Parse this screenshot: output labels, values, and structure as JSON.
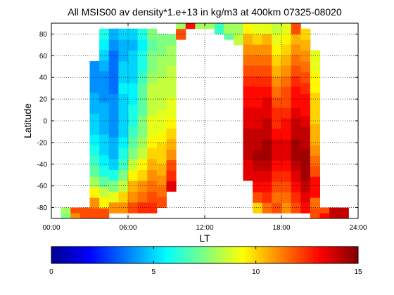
{
  "chart_data": {
    "type": "heatmap",
    "title": "All MSIS00 av density*1.e+13 in kg/m3 at 400km 07325-08020",
    "xlabel": "LT",
    "ylabel": "Latitude",
    "xlim": [
      0,
      24
    ],
    "ylim": [
      -90,
      90
    ],
    "xtick_labels": [
      "00:00",
      "06:00",
      "12:00",
      "18:00",
      "24:00"
    ],
    "ytick_labels": [
      "-80",
      "-60",
      "-40",
      "-20",
      "0",
      "20",
      "40",
      "60",
      "80"
    ],
    "grid": true,
    "colorscale": "jet",
    "colorbar": {
      "range": [
        0,
        15
      ],
      "tick_labels": [
        "0",
        "5",
        "10",
        "15"
      ]
    },
    "columns": [
      {
        "lt_start": 0.75,
        "lt_end": 1.5,
        "lat_start": -90,
        "lat_end": -80,
        "values": [
          7.5,
          8
        ]
      },
      {
        "lt_start": 1.5,
        "lt_end": 2.25,
        "lat_start": -90,
        "lat_end": -80,
        "values": [
          11,
          12
        ]
      },
      {
        "lt_start": 2.25,
        "lt_end": 3.0,
        "lat_start": -90,
        "lat_end": -80,
        "values": [
          12,
          12
        ]
      },
      {
        "lt_start": 3.0,
        "lt_end": 3.75,
        "lat_start": -90,
        "lat_end": 55,
        "values": [
          12,
          11,
          9.5,
          8,
          7,
          6.5,
          6,
          5.5,
          5,
          5,
          4.5,
          4.5,
          4,
          4,
          4
        ]
      },
      {
        "lt_start": 3.75,
        "lt_end": 4.5,
        "lat_start": -90,
        "lat_end": 85,
        "values": [
          12,
          9.5,
          8.5,
          7,
          6,
          5.5,
          5,
          5,
          4.5,
          4.5,
          4.5,
          4,
          4,
          4,
          4.5,
          5,
          5.5,
          6
        ]
      },
      {
        "lt_start": 4.5,
        "lt_end": 5.25,
        "lat_start": -85,
        "lat_end": 85,
        "values": [
          11,
          9,
          7.5,
          6,
          5,
          4.5,
          4.5,
          4,
          4,
          4,
          4,
          3.5,
          3.5,
          3.5,
          3.5,
          4,
          4.5
        ]
      },
      {
        "lt_start": 5.25,
        "lt_end": 6.0,
        "lat_start": -85,
        "lat_end": 85,
        "values": [
          11,
          10,
          8.5,
          7.5,
          6.5,
          6,
          5.5,
          5,
          5,
          5,
          5,
          5.5,
          5,
          5,
          4.5,
          4.5,
          5
        ]
      },
      {
        "lt_start": 6.0,
        "lt_end": 6.75,
        "lat_start": -85,
        "lat_end": 85,
        "values": [
          12,
          11,
          10.5,
          9.5,
          8.5,
          7.5,
          7,
          6.5,
          6,
          6,
          5.5,
          5.5,
          5,
          5,
          5,
          4.5,
          5
        ]
      },
      {
        "lt_start": 6.75,
        "lt_end": 7.5,
        "lat_start": -85,
        "lat_end": 85,
        "values": [
          12.5,
          11.5,
          11,
          10,
          9.5,
          8.5,
          8,
          7.5,
          7.5,
          7,
          7,
          7,
          6.5,
          6,
          6,
          5.5,
          6
        ]
      },
      {
        "lt_start": 7.5,
        "lt_end": 8.25,
        "lat_start": -85,
        "lat_end": 85,
        "values": [
          12.5,
          12,
          11.5,
          11,
          10.5,
          10,
          9.5,
          9,
          9,
          8.5,
          8.5,
          8.5,
          8,
          7.5,
          7.5,
          7,
          7.5
        ]
      },
      {
        "lt_start": 8.25,
        "lt_end": 9.0,
        "lat_start": -80,
        "lat_end": 80,
        "values": [
          12,
          11.5,
          11,
          10.5,
          10,
          10,
          9.5,
          9,
          9,
          8.5,
          8.5,
          8.5,
          8,
          8,
          7.5,
          7.5
        ]
      },
      {
        "lt_start": 9.0,
        "lt_end": 9.75,
        "lat_start": -65,
        "lat_end": 80,
        "values": [
          13.5,
          12.5,
          12,
          11,
          10.5,
          10,
          9.5,
          9,
          9,
          8.5,
          8.5,
          8.5,
          8,
          8,
          7.5
        ]
      },
      {
        "lt_start": 9.75,
        "lt_end": 10.5,
        "lat_start": 75,
        "lat_end": 85,
        "values": [
          12
        ]
      },
      {
        "lt_start": 9.75,
        "lt_end": 10.5,
        "lat_start": 85,
        "lat_end": 90,
        "values": [
          8
        ]
      },
      {
        "lt_start": 10.5,
        "lt_end": 11.25,
        "lat_start": 85,
        "lat_end": 90,
        "values": [
          13
        ]
      },
      {
        "lt_start": 11.25,
        "lt_end": 12.0,
        "lat_start": 85,
        "lat_end": 90,
        "values": [
          8
        ]
      },
      {
        "lt_start": 12.0,
        "lt_end": 12.75,
        "lat_start": 85,
        "lat_end": 90,
        "values": [
          8
        ]
      },
      {
        "lt_start": 12.75,
        "lt_end": 13.5,
        "lat_start": 80,
        "lat_end": 90,
        "values": [
          6.5
        ]
      },
      {
        "lt_start": 13.5,
        "lt_end": 14.25,
        "lat_start": 80,
        "lat_end": 90,
        "values": [
          8
        ]
      },
      {
        "lt_start": 13.5,
        "lt_end": 14.25,
        "lat_start": 75,
        "lat_end": 80,
        "values": [
          7
        ]
      },
      {
        "lt_start": 14.25,
        "lt_end": 15.0,
        "lat_start": 70,
        "lat_end": 90,
        "values": [
          8.5,
          8
        ]
      },
      {
        "lt_start": 15.0,
        "lt_end": 15.75,
        "lat_start": -55,
        "lat_end": 90,
        "values": [
          13.5,
          13.5,
          14,
          14,
          14,
          13.5,
          13.5,
          13,
          13,
          12.5,
          12,
          11.5,
          11,
          10.5,
          9.5
        ]
      },
      {
        "lt_start": 15.75,
        "lt_end": 16.5,
        "lat_start": -85,
        "lat_end": 90,
        "values": [
          10,
          12,
          13,
          13.5,
          14,
          14.5,
          14,
          14,
          13.5,
          13.5,
          13,
          13,
          12.5,
          12,
          11.5,
          11,
          10,
          9
        ]
      },
      {
        "lt_start": 16.5,
        "lt_end": 17.25,
        "lat_start": -85,
        "lat_end": 90,
        "values": [
          11.5,
          12.5,
          13,
          13.5,
          14,
          14.5,
          14.5,
          14,
          14,
          13.5,
          13.5,
          13,
          12.5,
          12,
          11.5,
          11,
          10.5,
          9
        ]
      },
      {
        "lt_start": 17.25,
        "lt_end": 18.0,
        "lat_start": -85,
        "lat_end": 90,
        "values": [
          12,
          11.5,
          12,
          12.5,
          13,
          13.5,
          13.5,
          13,
          12.5,
          12.5,
          12,
          11.5,
          11,
          10.5,
          10,
          9.5,
          9,
          8.5
        ]
      },
      {
        "lt_start": 18.0,
        "lt_end": 18.75,
        "lat_start": -85,
        "lat_end": 90,
        "values": [
          11,
          11.5,
          12,
          12.5,
          13,
          13.5,
          13.5,
          13,
          13,
          12.5,
          12,
          12,
          11.5,
          11,
          10.5,
          10,
          9.5,
          9
        ]
      },
      {
        "lt_start": 18.75,
        "lt_end": 19.5,
        "lat_start": -85,
        "lat_end": 90,
        "values": [
          12,
          12.5,
          13,
          13.5,
          14,
          14.5,
          14.5,
          14,
          14,
          13.5,
          13,
          13,
          12.5,
          12,
          11.5,
          11,
          10.5,
          12
        ]
      },
      {
        "lt_start": 19.5,
        "lt_end": 20.25,
        "lat_start": -85,
        "lat_end": 85,
        "values": [
          13,
          13.5,
          14,
          14.5,
          14.5,
          14.5,
          14,
          14,
          13.5,
          13,
          13,
          12.5,
          12,
          11.5,
          11,
          10.5,
          10
        ]
      },
      {
        "lt_start": 20.25,
        "lt_end": 21.0,
        "lat_start": -90,
        "lat_end": 65,
        "values": [
          12,
          11.5,
          13,
          13,
          12,
          11.5,
          11,
          10.5,
          10.5,
          10,
          10,
          10,
          9.5,
          9.5,
          9,
          9
        ]
      },
      {
        "lt_start": 21.0,
        "lt_end": 21.75,
        "lat_start": -90,
        "lat_end": -80,
        "values": [
          13,
          12
        ]
      },
      {
        "lt_start": 21.75,
        "lt_end": 22.5,
        "lat_start": -90,
        "lat_end": -80,
        "values": [
          14,
          14
        ]
      },
      {
        "lt_start": 22.5,
        "lt_end": 23.25,
        "lat_start": -90,
        "lat_end": -80,
        "values": [
          14,
          14
        ]
      }
    ]
  }
}
